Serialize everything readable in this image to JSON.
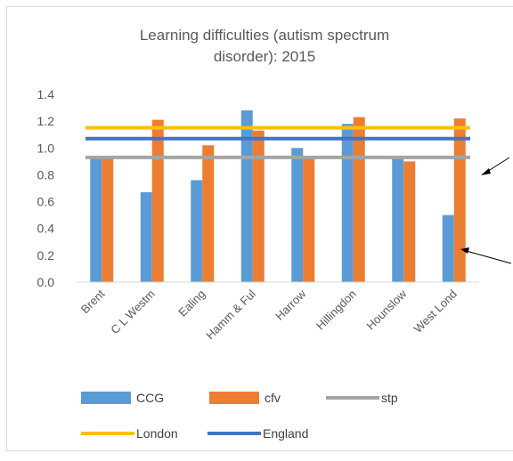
{
  "chart_data": {
    "type": "bar",
    "title_lines": [
      "Learning difficulties (autism spectrum",
      "disorder): 2015"
    ],
    "categories": [
      "Brent",
      "C L Westm",
      "Ealing",
      "Hamm & Ful",
      "Harrow",
      "Hillingdon",
      "Hounslow",
      "West Lond"
    ],
    "bar_series": [
      {
        "name": "CCG",
        "color": "#5b9bd5",
        "values": [
          0.94,
          0.67,
          0.76,
          1.28,
          1.0,
          1.18,
          0.93,
          0.5
        ]
      },
      {
        "name": "cfv",
        "color": "#ed7d31",
        "values": [
          0.93,
          1.21,
          1.02,
          1.13,
          0.93,
          1.23,
          0.9,
          1.22
        ]
      }
    ],
    "reference_lines": [
      {
        "name": "stp",
        "color": "#a5a5a5",
        "value": 0.93
      },
      {
        "name": "London",
        "color": "#ffc000",
        "value": 1.15
      },
      {
        "name": "England",
        "color": "#4472c4",
        "value": 1.07
      }
    ],
    "ylim": [
      0,
      1.4
    ],
    "y_ticks": [
      "0.0",
      "0.2",
      "0.4",
      "0.6",
      "0.8",
      "1.0",
      "1.2",
      "1.4"
    ],
    "grid": false,
    "legend_position": "bottom"
  }
}
